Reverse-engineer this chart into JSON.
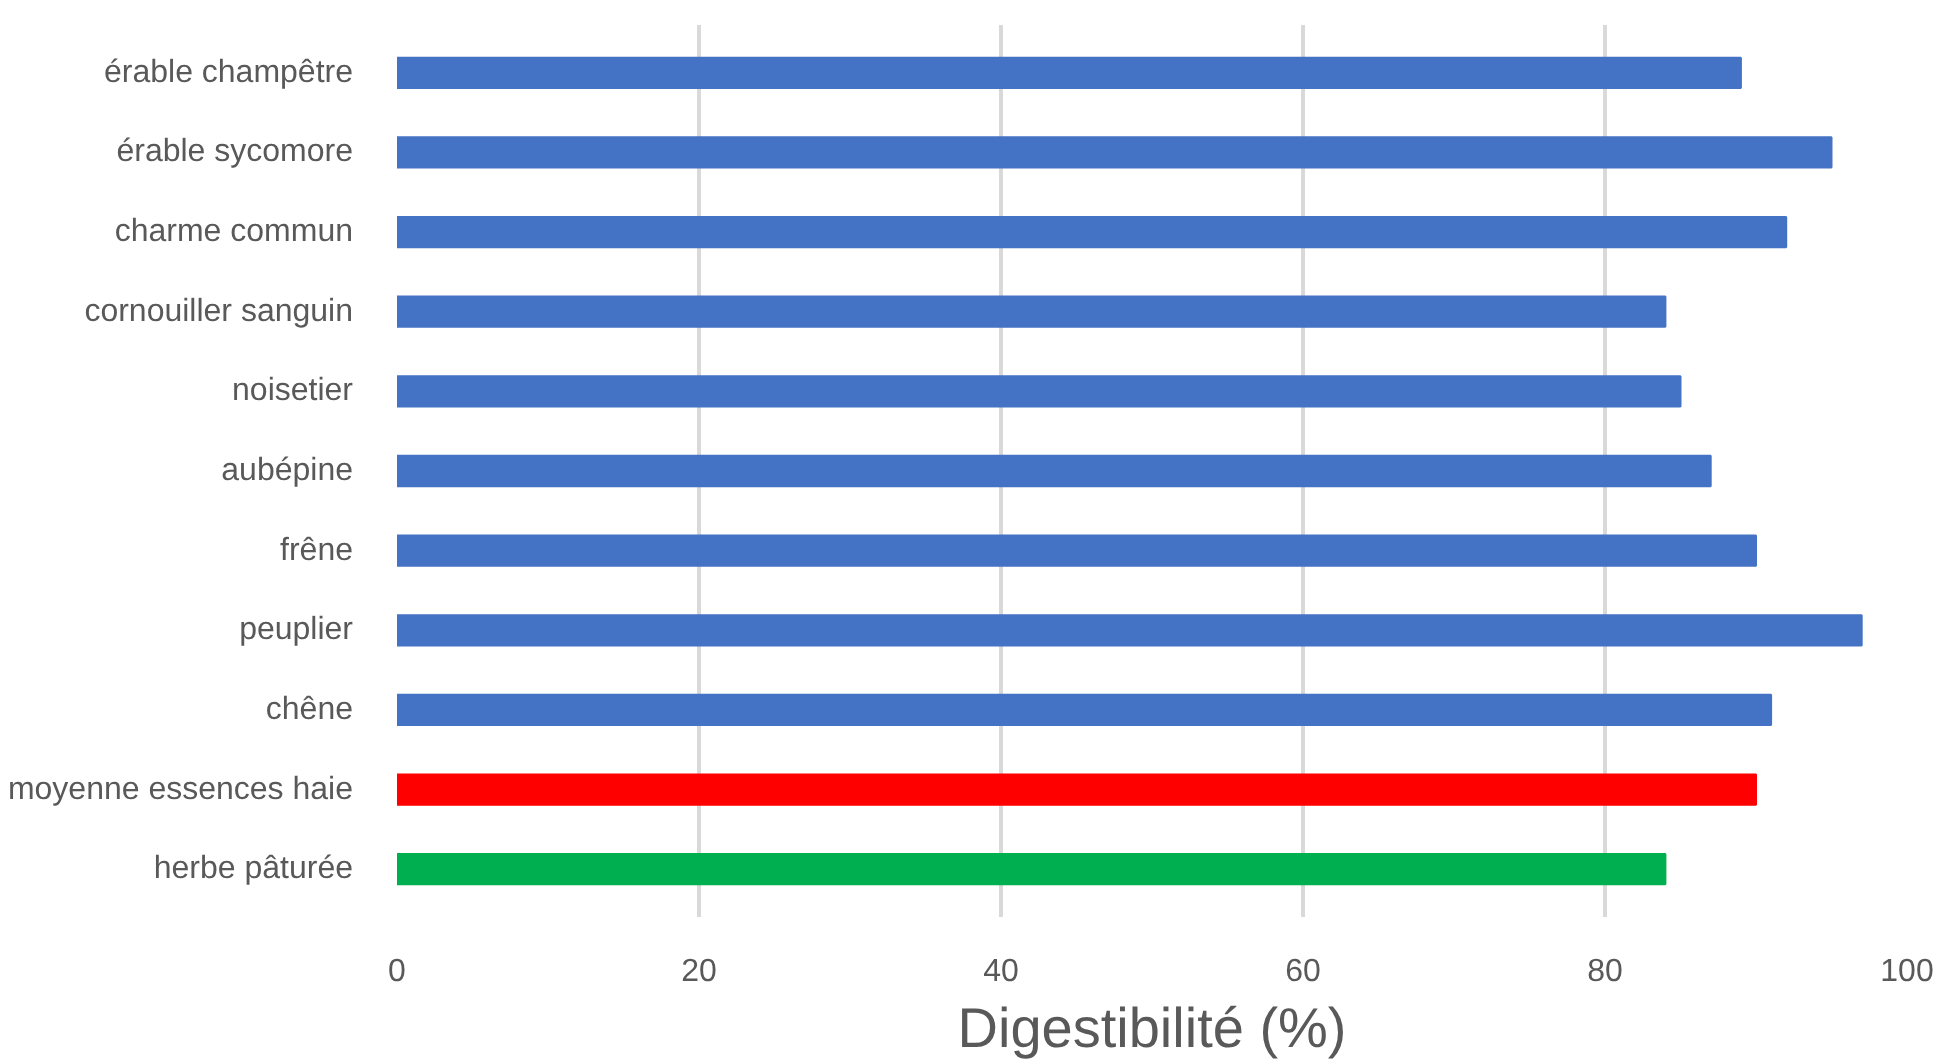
{
  "chart_data": {
    "type": "bar",
    "orientation": "horizontal",
    "xlabel": "Digestibilité (%)",
    "categories": [
      "érable champêtre",
      "érable sycomore",
      "charme commun",
      "cornouiller sanguin",
      "noisetier",
      "aubépine",
      "frêne",
      "peuplier",
      "chêne",
      "moyenne essences haie",
      "herbe pâturée"
    ],
    "values": [
      89,
      95,
      92,
      84,
      85,
      87,
      90,
      97,
      91,
      90,
      84
    ],
    "colors": [
      "#4472c4",
      "#4472c4",
      "#4472c4",
      "#4472c4",
      "#4472c4",
      "#4472c4",
      "#4472c4",
      "#4472c4",
      "#4472c4",
      "#ff0000",
      "#00b050"
    ],
    "xlim": [
      0,
      100
    ],
    "xticks": [
      0,
      20,
      40,
      60,
      80,
      100
    ],
    "grid": "x"
  }
}
